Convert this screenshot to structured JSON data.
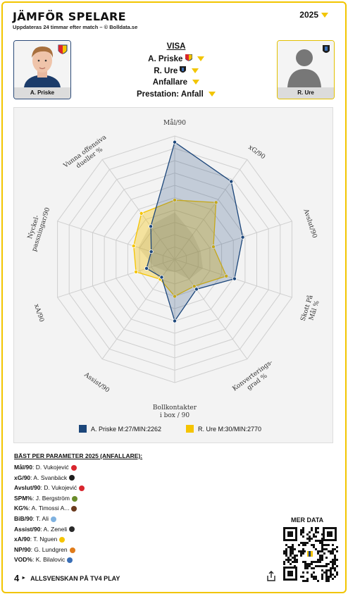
{
  "header": {
    "title": "JÄMFÖR SPELARE",
    "subtitle": "Uppdateras 24 timmar efter match – © Bolldata.se",
    "year": "2025"
  },
  "players": [
    {
      "name": "A. Priske",
      "series_color": "#1c467a"
    },
    {
      "name": "R. Ure",
      "series_color": "#f5c400"
    }
  ],
  "visa": {
    "label": "VISA",
    "player1": "A. Priske",
    "player2": "R. Ure",
    "position": "Anfallare",
    "prestation": "Prestation: Anfall"
  },
  "chart_data": {
    "type": "radar",
    "axes": [
      "Mål/90",
      "xG/90",
      "Avslut/90",
      "Skott På Mål %",
      "Konverterings-grad %",
      "Bollkontakter i box / 90",
      "Assist/90",
      "xA/90",
      "Nyckel-passningar/90",
      "Vunna offensiva dueller %"
    ],
    "range": [
      0,
      100
    ],
    "series": [
      {
        "name": "A. Priske M:27/MIN:2262",
        "color": "#1c467a",
        "values": [
          95,
          78,
          58,
          51,
          30,
          50,
          18,
          24,
          20,
          33
        ]
      },
      {
        "name": "R. Ure M:30/MIN:2770",
        "color": "#f5c400",
        "values": [
          48,
          57,
          33,
          44,
          27,
          30,
          20,
          33,
          35,
          46
        ]
      },
      {
        "name": "",
        "color": "#999999",
        "values": [
          38,
          25,
          22,
          24,
          20,
          10,
          12,
          18,
          31,
          34
        ]
      }
    ],
    "legend": [
      "A. Priske M:27/MIN:2262",
      "R. Ure M:30/MIN:2770"
    ],
    "grid": true,
    "legend_position": "bottom"
  },
  "best": {
    "heading": "BÄST PER PARAMETER 2025 (ANFALLARE):",
    "rows": [
      {
        "param": "Mål/90",
        "player": "D. Vukojević",
        "color": "#d9262e"
      },
      {
        "param": "xG/90",
        "player": "A. Svanbäck",
        "color": "#1d1d1d"
      },
      {
        "param": "Avslut/90",
        "player": "D. Vukojević",
        "color": "#d9262e"
      },
      {
        "param": "SPM%",
        "player": "J. Bergström",
        "color": "#6a8c2a"
      },
      {
        "param": "KG%",
        "player": "A. Timossi A...",
        "color": "#6b3a1e"
      },
      {
        "param": "BiB/90",
        "player": "T. Ali",
        "color": "#7fb2e0"
      },
      {
        "param": "Assist/90",
        "player": "A. Zeneli",
        "color": "#2a2a2a"
      },
      {
        "param": "xA/90",
        "player": "T. Nguen",
        "color": "#f5c400"
      },
      {
        "param": "NP/90",
        "player": "G. Lundgren",
        "color": "#e07b1a"
      },
      {
        "param": "VOD%",
        "player": "K. Bilalovic",
        "color": "#3b6fb6"
      }
    ]
  },
  "qr": {
    "label": "MER DATA"
  },
  "footer": {
    "text": "ALLSVENSKAN PÅ TV4 PLAY",
    "brand": "4"
  }
}
